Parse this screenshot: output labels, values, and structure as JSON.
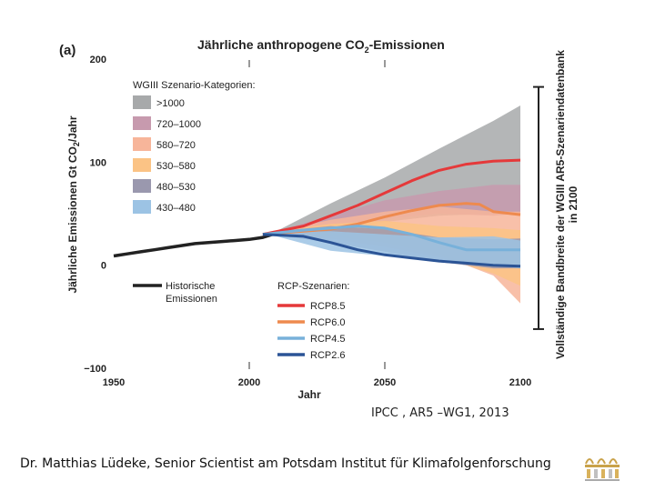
{
  "chart_data": {
    "type": "area",
    "panel_label": "(a)",
    "title_part1": "Jährliche anthropogene CO",
    "title_sub": "2",
    "title_part2": "-Emissionen",
    "ylabel_part1": "Jährliche Emissionen Gt CO",
    "ylabel_sub": "2",
    "ylabel_part2": "/Jahr",
    "xlabel": "Jahr",
    "xlim": [
      1950,
      2100
    ],
    "ylim": [
      -100,
      200
    ],
    "x_ticks": [
      "1950",
      "2000",
      "2050",
      "2100"
    ],
    "y_ticks": [
      "200",
      "100",
      "0",
      "−100"
    ],
    "scenario_legend_title": "WGIII Szenario-Kategorien:",
    "scenario_categories": [
      {
        "label": ">1000",
        "color": "#a7a9aa"
      },
      {
        "label": "720–1000",
        "color": "#c79aae"
      },
      {
        "label": "580–720",
        "color": "#f7b59a"
      },
      {
        "label": "530–580",
        "color": "#fbc385"
      },
      {
        "label": "480–530",
        "color": "#9a98ae"
      },
      {
        "label": "430–480",
        "color": "#9cc3e4"
      }
    ],
    "historical_label_line1": "Historische",
    "historical_label_line2": "Emissionen",
    "rcp_legend_title": "RCP-Szenarien:",
    "rcp_scenarios": [
      {
        "label": "RCP8.5",
        "color": "#e5393a"
      },
      {
        "label": "RCP6.0",
        "color": "#ee8a4e"
      },
      {
        "label": "RCP4.5",
        "color": "#78b1da"
      },
      {
        "label": "RCP2.6",
        "color": "#2b5496"
      }
    ],
    "side_label_line1": "Vollständige Bandbreite der WGIII AR5-Szenariendatenbank",
    "side_label_line2": "in 2100",
    "side_range": [
      -62,
      173
    ],
    "historical": {
      "x": [
        1950,
        1955,
        1960,
        1965,
        1970,
        1975,
        1980,
        1985,
        1990,
        1995,
        2000,
        2005,
        2010
      ],
      "y": [
        9,
        11,
        13,
        15,
        17,
        19,
        21,
        22,
        23,
        24,
        25,
        27,
        31
      ]
    },
    "bands": [
      {
        "category": ">1000",
        "x": [
          2010,
          2030,
          2050,
          2070,
          2090,
          2100
        ],
        "upper": [
          33,
          60,
          85,
          113,
          140,
          155
        ],
        "lower": [
          30,
          30,
          42,
          48,
          50,
          50
        ]
      },
      {
        "category": "720–1000",
        "x": [
          2010,
          2030,
          2050,
          2070,
          2090,
          2100
        ],
        "upper": [
          33,
          48,
          63,
          72,
          78,
          78
        ],
        "lower": [
          30,
          32,
          45,
          50,
          48,
          50
        ]
      },
      {
        "category": "580–720",
        "x": [
          2010,
          2030,
          2050,
          2070,
          2090,
          2100
        ],
        "upper": [
          33,
          44,
          52,
          57,
          52,
          52
        ],
        "lower": [
          30,
          28,
          22,
          10,
          -10,
          -37
        ]
      },
      {
        "category": "530–580",
        "x": [
          2010,
          2030,
          2050,
          2070,
          2090,
          2100
        ],
        "upper": [
          33,
          40,
          43,
          38,
          36,
          34
        ],
        "lower": [
          30,
          26,
          18,
          8,
          -8,
          -20
        ]
      },
      {
        "category": "480–530",
        "x": [
          2010,
          2030,
          2050,
          2070,
          2090,
          2100
        ],
        "upper": [
          33,
          38,
          35,
          27,
          25,
          26
        ],
        "lower": [
          29,
          22,
          13,
          3,
          -3,
          -3
        ]
      },
      {
        "category": "430–480",
        "x": [
          2010,
          2030,
          2050,
          2070,
          2090,
          2100
        ],
        "upper": [
          32,
          33,
          30,
          27,
          28,
          24
        ],
        "lower": [
          28,
          14,
          9,
          4,
          0,
          -3
        ]
      }
    ],
    "rcp_lines": [
      {
        "name": "RCP8.5",
        "x": [
          2005,
          2020,
          2030,
          2040,
          2050,
          2060,
          2070,
          2080,
          2090,
          2100
        ],
        "y": [
          30,
          38,
          48,
          58,
          70,
          82,
          92,
          98,
          101,
          102
        ]
      },
      {
        "name": "RCP6.0",
        "x": [
          2005,
          2020,
          2030,
          2040,
          2050,
          2060,
          2070,
          2080,
          2085,
          2090,
          2100
        ],
        "y": [
          30,
          33,
          35,
          40,
          47,
          53,
          58,
          60,
          59,
          52,
          49
        ]
      },
      {
        "name": "RCP4.5",
        "x": [
          2005,
          2020,
          2030,
          2040,
          2050,
          2060,
          2070,
          2080,
          2090,
          2100
        ],
        "y": [
          30,
          34,
          36,
          38,
          36,
          30,
          22,
          15,
          15,
          15
        ]
      },
      {
        "name": "RCP2.6",
        "x": [
          2005,
          2020,
          2030,
          2040,
          2050,
          2060,
          2070,
          2080,
          2090,
          2100
        ],
        "y": [
          30,
          28,
          22,
          15,
          10,
          7,
          4,
          2,
          0,
          -1
        ]
      }
    ]
  },
  "source_note": "IPCC , AR5 –WG1, 2013",
  "footer": "Dr. Matthias Lüdeke, Senior Scientist am Potsdam Institut für Klimafolgenforschung"
}
